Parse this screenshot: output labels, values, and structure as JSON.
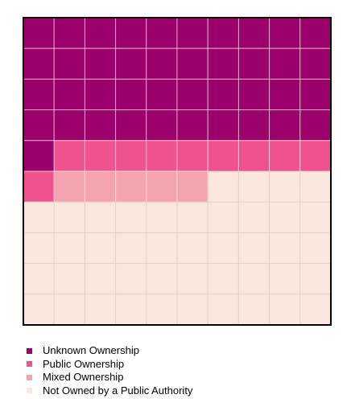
{
  "chart_data": {
    "type": "waffle",
    "title": "",
    "grid": {
      "rows": 10,
      "cols": 10,
      "total_cells": 100
    },
    "fill_order": "top-to-bottom, left-to-right within each row",
    "series": [
      {
        "name": "Unknown Ownership",
        "value": 41,
        "color": "#9c006b"
      },
      {
        "name": "Public Ownership",
        "value": 10,
        "color": "#f0518f"
      },
      {
        "name": "Mixed Ownership",
        "value": 5,
        "color": "#f4a4ae"
      },
      {
        "name": "Not Owned by a Public Authority",
        "value": 44,
        "color": "#fbe6dd"
      }
    ],
    "grid_line_color": "#e8cfc6",
    "border_color": "#000000",
    "legend_position": "bottom-left"
  }
}
